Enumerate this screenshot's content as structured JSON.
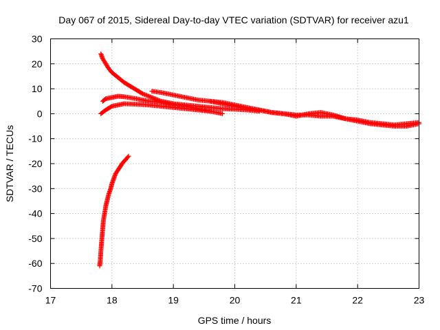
{
  "chart_data": {
    "type": "scatter",
    "title": "Day 067 of 2015, Sidereal Day-to-day VTEC variation (SDTVAR) for receiver azu1",
    "xlabel": "GPS time / hours",
    "ylabel": "SDTVAR / TECUs",
    "xlim": [
      17,
      23
    ],
    "ylim": [
      -70,
      30
    ],
    "xticks": [
      17,
      18,
      19,
      20,
      21,
      22,
      23
    ],
    "yticks": [
      -70,
      -60,
      -50,
      -40,
      -30,
      -20,
      -10,
      0,
      10,
      20,
      30
    ],
    "grid": true,
    "marker": "+",
    "color": "#ff0000",
    "series": [
      {
        "name": "arc-descending-from-24",
        "x": [
          17.82,
          17.85,
          17.9,
          17.95,
          18.0,
          18.1,
          18.2,
          18.3,
          18.4,
          18.5,
          18.6,
          18.7,
          18.8,
          18.9,
          19.0,
          19.2,
          19.4,
          19.6,
          19.8,
          20.0,
          20.2,
          20.4
        ],
        "y": [
          24,
          22,
          20,
          18,
          16.5,
          14.5,
          12.5,
          11,
          9.5,
          8,
          7,
          6,
          5,
          4.5,
          4,
          3.5,
          3,
          2.5,
          2,
          1.8,
          1.5,
          1
        ]
      },
      {
        "name": "arc-mid-band-upper",
        "x": [
          17.85,
          17.9,
          18.0,
          18.1,
          18.2,
          18.4,
          18.6,
          18.8,
          19.0,
          19.2,
          19.4,
          19.6,
          19.8
        ],
        "y": [
          5,
          6,
          6.5,
          7,
          6.8,
          6,
          5,
          4.5,
          3.5,
          3,
          2,
          1,
          0
        ]
      },
      {
        "name": "arc-mid-band-lower",
        "x": [
          17.82,
          17.9,
          18.0,
          18.1,
          18.2,
          18.4,
          18.6,
          18.8,
          19.0,
          19.2,
          19.4,
          19.6
        ],
        "y": [
          0,
          1.5,
          3,
          3.5,
          4,
          3.8,
          3.5,
          3,
          2.5,
          2,
          1.5,
          1
        ]
      },
      {
        "name": "long-arc-declining",
        "x": [
          18.65,
          18.8,
          19.0,
          19.2,
          19.4,
          19.6,
          19.8,
          20.0,
          20.2,
          20.4,
          20.6,
          20.8,
          21.0,
          21.2,
          21.4,
          21.6,
          21.8,
          22.0,
          22.2,
          22.4,
          22.6,
          22.8,
          23.0
        ],
        "y": [
          9,
          8.5,
          7.5,
          6.5,
          5.5,
          5,
          4,
          3,
          2,
          1.5,
          0.5,
          0,
          -0.5,
          -0.5,
          -1,
          -1,
          -2,
          -2.5,
          -3.5,
          -4,
          -4.5,
          -4,
          -3.5
        ]
      },
      {
        "name": "arc-band-right",
        "x": [
          19.6,
          19.8,
          20.0,
          20.2,
          20.4,
          20.6,
          20.8,
          21.0,
          21.2,
          21.4,
          21.6,
          21.8,
          22.0,
          22.2,
          22.4,
          22.6,
          22.8,
          23.0
        ],
        "y": [
          5,
          4.5,
          3.5,
          2.5,
          1.5,
          0.5,
          0,
          -1,
          0,
          0.5,
          -0.5,
          -2,
          -3,
          -4,
          -4.5,
          -5,
          -5,
          -4
        ]
      },
      {
        "name": "arc-rising-from-minus-60",
        "x": [
          17.8,
          17.81,
          17.82,
          17.83,
          17.84,
          17.85,
          17.86,
          17.88,
          17.9,
          17.92,
          17.95,
          17.98,
          18.0,
          18.03,
          18.06,
          18.1,
          18.14,
          18.18,
          18.22,
          18.27
        ],
        "y": [
          -61,
          -59,
          -55,
          -52,
          -49,
          -46,
          -43,
          -40,
          -37,
          -35,
          -32,
          -30,
          -28,
          -26,
          -24,
          -22.5,
          -21,
          -19.5,
          -18.5,
          -17
        ]
      }
    ]
  }
}
